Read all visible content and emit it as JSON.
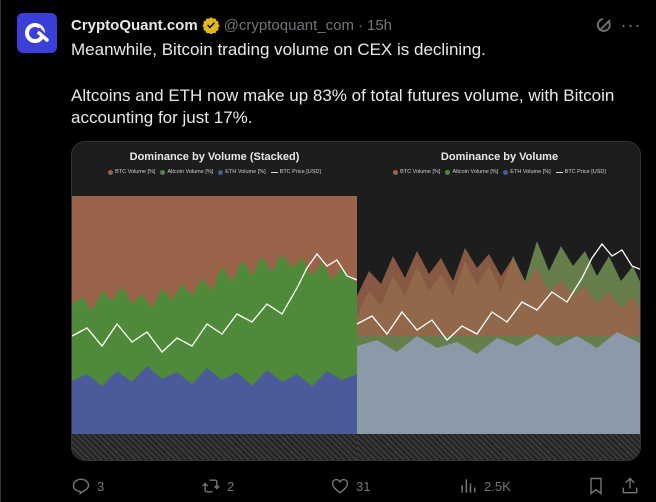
{
  "author": {
    "name": "CryptoQuant.com",
    "handle": "@cryptoquant_com",
    "separator": "·",
    "time": "15h"
  },
  "tweet": {
    "line1": "Meanwhile, Bitcoin trading volume on CEX is declining.",
    "line2": "Altcoins and ETH now make up 83% of total futures volume, with Bitcoin accounting for just 17%."
  },
  "stats": {
    "replies": "3",
    "reposts": "2",
    "likes": "31",
    "views": "2.5K"
  },
  "charts": {
    "left_title": "Dominance by Volume (Stacked)",
    "right_title": "Dominance by Volume",
    "legend": {
      "btc": "BTC Volume [%]",
      "alt": "Altcoin Volume [%]",
      "eth": "ETH Volume [%]",
      "price": "BTC Price [USD]"
    }
  },
  "colors": {
    "btc": "#9a644a",
    "alt": "#4f8a3a",
    "eth": "#4a5a9a",
    "price": "#ffffff",
    "verified": "#e2b719",
    "avatar": "#3b3fd8"
  },
  "icons": {
    "avatar": "cryptoquant-logo",
    "verified": "verified-badge-icon",
    "grok": "grok-icon",
    "more": "more-icon",
    "reply": "reply-icon",
    "repost": "repost-icon",
    "like": "like-icon",
    "views": "views-icon",
    "bookmark": "bookmark-icon",
    "share": "share-icon"
  }
}
